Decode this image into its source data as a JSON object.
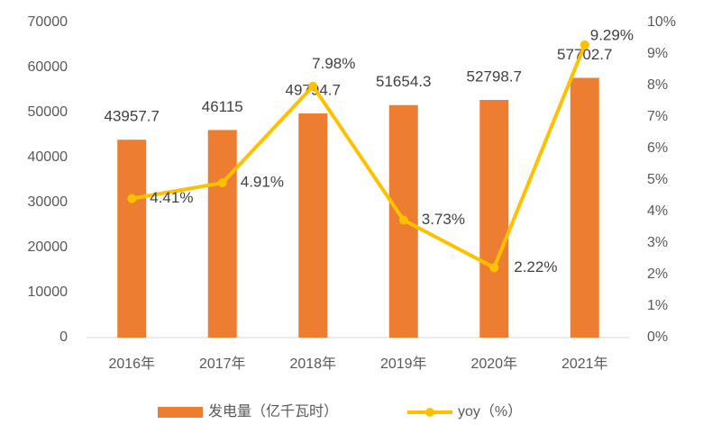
{
  "chart_data": {
    "type": "bar",
    "categories": [
      "2016年",
      "2017年",
      "2018年",
      "2019年",
      "2020年",
      "2021年"
    ],
    "series": [
      {
        "name": "发电量（亿千瓦时）",
        "color": "#ED7D31",
        "values": [
          43957.7,
          46115,
          49794.7,
          51654.3,
          52798.7,
          57702.7
        ]
      },
      {
        "name": "yoy（%）",
        "type": "line",
        "axis": "y2",
        "color": "#FFC000",
        "values": [
          4.41,
          4.91,
          7.98,
          3.73,
          2.22,
          9.29
        ],
        "value_labels": [
          "4.41%",
          "4.91%",
          "7.98%",
          "3.73%",
          "2.22%",
          "9.29%"
        ]
      }
    ],
    "ylim": [
      0,
      70000
    ],
    "yticks": [
      0,
      10000,
      20000,
      30000,
      40000,
      50000,
      60000,
      70000
    ],
    "y2lim": [
      0,
      10
    ],
    "y2ticks": [
      {
        "value": 0,
        "label": "0%"
      },
      {
        "value": 1,
        "label": "1%"
      },
      {
        "value": 2,
        "label": "2%"
      },
      {
        "value": 3,
        "label": "3%"
      },
      {
        "value": 4,
        "label": "4%"
      },
      {
        "value": 5,
        "label": "5%"
      },
      {
        "value": 6,
        "label": "6%"
      },
      {
        "value": 7,
        "label": "7%"
      },
      {
        "value": 8,
        "label": "8%"
      },
      {
        "value": 9,
        "label": "9%"
      },
      {
        "value": 10,
        "label": "10%"
      }
    ],
    "grid": false,
    "legend": "bottom"
  }
}
